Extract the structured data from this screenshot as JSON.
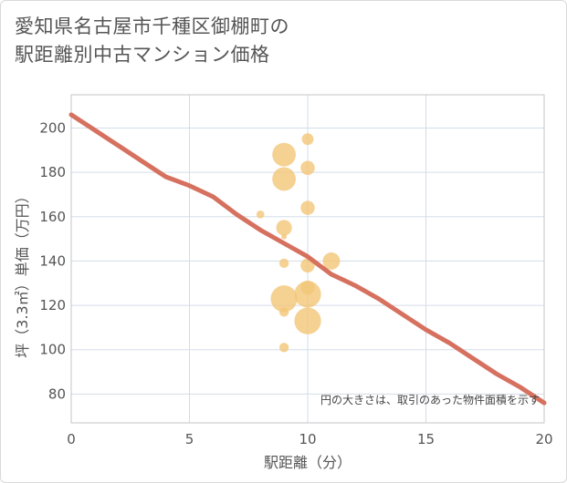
{
  "title_lines": [
    "愛知県名古屋市千種区御棚町の",
    "駅距離別中古マンション価格"
  ],
  "chart_data": {
    "type": "scatter",
    "title": "愛知県名古屋市千種区御棚町の駅距離別中古マンション価格",
    "xlabel": "駅距離（分）",
    "ylabel": "坪（3.3㎡）単価（万円）",
    "xlim": [
      0,
      20
    ],
    "ylim": [
      67,
      215
    ],
    "x_ticks": [
      0,
      5,
      10,
      15,
      20
    ],
    "y_ticks": [
      80,
      100,
      120,
      140,
      160,
      180,
      200
    ],
    "grid": true,
    "note": "円の大きさは、取引のあった物件面積を示す",
    "bubble_color": "#f3c77a",
    "line_color": "#d6705f",
    "bubbles": [
      {
        "x": 9,
        "y": 188,
        "size": 3
      },
      {
        "x": 9,
        "y": 177,
        "size": 3
      },
      {
        "x": 10,
        "y": 195,
        "size": 1.5
      },
      {
        "x": 10,
        "y": 182,
        "size": 1.8
      },
      {
        "x": 10,
        "y": 164,
        "size": 1.8
      },
      {
        "x": 9,
        "y": 155,
        "size": 2
      },
      {
        "x": 8,
        "y": 161,
        "size": 1
      },
      {
        "x": 9,
        "y": 151,
        "size": 0.7
      },
      {
        "x": 11,
        "y": 140,
        "size": 2.2
      },
      {
        "x": 10,
        "y": 138,
        "size": 1.8
      },
      {
        "x": 9,
        "y": 139,
        "size": 1.2
      },
      {
        "x": 10,
        "y": 128,
        "size": 1.8
      },
      {
        "x": 10,
        "y": 125,
        "size": 3.4
      },
      {
        "x": 9,
        "y": 123,
        "size": 3.4
      },
      {
        "x": 9,
        "y": 117,
        "size": 1.2
      },
      {
        "x": 10,
        "y": 113,
        "size": 3.4
      },
      {
        "x": 9,
        "y": 101,
        "size": 1.2
      }
    ],
    "trend_line": {
      "x": [
        0,
        1,
        2,
        3,
        4,
        5,
        6,
        7,
        8,
        9,
        10,
        11,
        12,
        13,
        14,
        15,
        16,
        17,
        18,
        19,
        20
      ],
      "y": [
        206,
        199,
        192,
        185,
        178,
        174,
        169,
        161,
        154,
        148,
        142,
        134,
        129,
        123,
        116,
        109,
        103,
        96,
        89,
        83,
        76
      ]
    }
  }
}
